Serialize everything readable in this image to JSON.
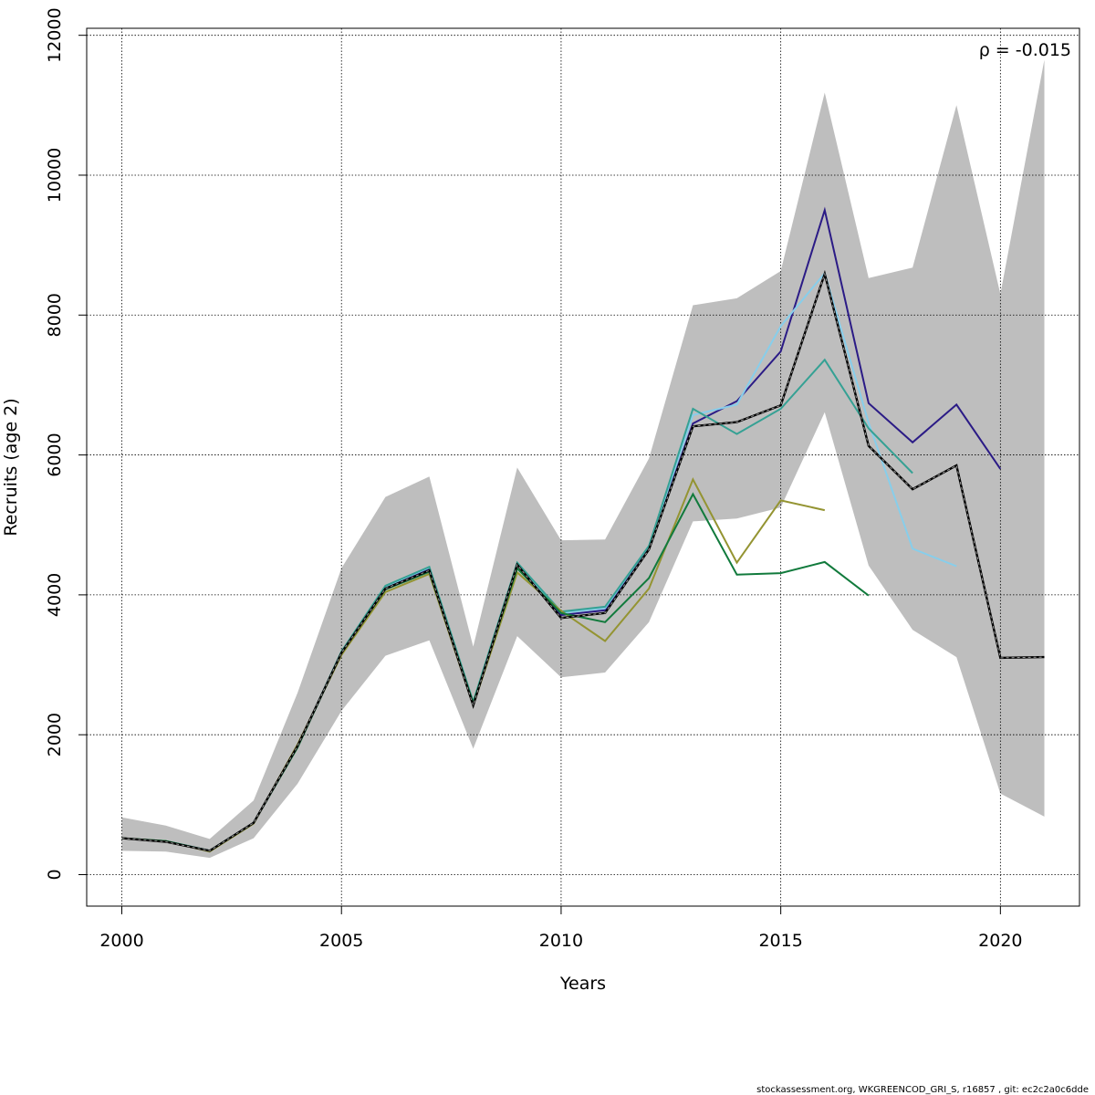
{
  "chart_data": {
    "type": "line",
    "xlabel": "Years",
    "ylabel": "Recruits (age 2)",
    "xlim": [
      1999.2,
      2021.8
    ],
    "ylim": [
      -450,
      12100
    ],
    "x_ticks": [
      2000,
      2005,
      2010,
      2015,
      2020
    ],
    "y_ticks": [
      0,
      2000,
      4000,
      6000,
      8000,
      10000,
      12000
    ],
    "grid": true,
    "annotation": "ρ = -0.015",
    "footer": "stockassessment.org, WKGREENCOD_GRI_S, r16857 , git: ec2c2a0c6dde",
    "confidence_band": {
      "color": "#bebebe",
      "x": [
        2000,
        2001,
        2002,
        2003,
        2004,
        2005,
        2006,
        2007,
        2008,
        2009,
        2010,
        2011,
        2012,
        2013,
        2014,
        2015,
        2016,
        2017,
        2018,
        2019,
        2020,
        2021
      ],
      "upper": [
        820,
        700,
        510,
        1060,
        2600,
        4380,
        5400,
        5690,
        3260,
        5820,
        4780,
        4790,
        5950,
        8140,
        8240,
        8630,
        11180,
        8530,
        8680,
        11000,
        8300,
        11650
      ],
      "lower": [
        340,
        330,
        240,
        520,
        1300,
        2340,
        3130,
        3350,
        1800,
        3410,
        2820,
        2890,
        3610,
        5050,
        5090,
        5250,
        6610,
        4420,
        3500,
        3110,
        1160,
        830
      ]
    },
    "series": [
      {
        "color": "#2b1b86",
        "x": [
          2000,
          2001,
          2002,
          2003,
          2004,
          2005,
          2006,
          2007,
          2008,
          2009,
          2010,
          2011,
          2012,
          2013,
          2014,
          2015,
          2016,
          2017,
          2018,
          2019,
          2020
        ],
        "values": [
          520,
          480,
          340,
          740,
          1830,
          3170,
          4110,
          4380,
          2450,
          4440,
          3710,
          3780,
          4670,
          6450,
          6770,
          7480,
          9500,
          6740,
          6180,
          6720,
          5800
        ]
      },
      {
        "color": "#87ceeb",
        "x": [
          2000,
          2001,
          2002,
          2003,
          2004,
          2005,
          2006,
          2007,
          2008,
          2009,
          2010,
          2011,
          2012,
          2013,
          2014,
          2015,
          2016,
          2017,
          2018,
          2019
        ],
        "values": [
          520,
          480,
          340,
          740,
          1830,
          3180,
          4120,
          4390,
          2460,
          4450,
          3740,
          3810,
          4700,
          6570,
          6720,
          7840,
          8600,
          6460,
          4660,
          4410
        ]
      },
      {
        "color": "#35a194",
        "x": [
          2000,
          2001,
          2002,
          2003,
          2004,
          2005,
          2006,
          2007,
          2008,
          2009,
          2010,
          2011,
          2012,
          2013,
          2014,
          2015,
          2016,
          2017,
          2018
        ],
        "values": [
          520,
          480,
          340,
          740,
          1830,
          3190,
          4130,
          4400,
          2470,
          4460,
          3760,
          3830,
          4700,
          6660,
          6300,
          6660,
          7360,
          6380,
          5740
        ]
      },
      {
        "color": "#949432",
        "x": [
          2000,
          2001,
          2002,
          2003,
          2004,
          2005,
          2006,
          2007,
          2008,
          2009,
          2010,
          2011,
          2012,
          2013,
          2014,
          2015,
          2016
        ],
        "values": [
          520,
          480,
          330,
          730,
          1860,
          3140,
          4040,
          4300,
          2420,
          4320,
          3770,
          3340,
          4090,
          5650,
          4460,
          5350,
          5210
        ]
      },
      {
        "color": "#117a3c",
        "x": [
          2000,
          2001,
          2002,
          2003,
          2004,
          2005,
          2006,
          2007,
          2008,
          2009,
          2010,
          2011,
          2012,
          2013,
          2014,
          2015,
          2016,
          2017
        ],
        "values": [
          520,
          480,
          340,
          740,
          1820,
          3170,
          4080,
          4330,
          2450,
          4380,
          3740,
          3610,
          4240,
          5440,
          4290,
          4310,
          4470,
          3990
        ]
      },
      {
        "color": "#000000",
        "dashed": true,
        "x": [
          2000,
          2001,
          2002,
          2003,
          2004,
          2005,
          2006,
          2007,
          2008,
          2009,
          2010,
          2011,
          2012,
          2013,
          2014,
          2015,
          2016,
          2017,
          2018,
          2019,
          2020,
          2021
        ],
        "values": [
          520,
          470,
          340,
          740,
          1840,
          3170,
          4090,
          4350,
          2420,
          4430,
          3670,
          3740,
          4650,
          6410,
          6470,
          6710,
          8590,
          6130,
          5510,
          5850,
          3100,
          3110
        ]
      }
    ]
  }
}
